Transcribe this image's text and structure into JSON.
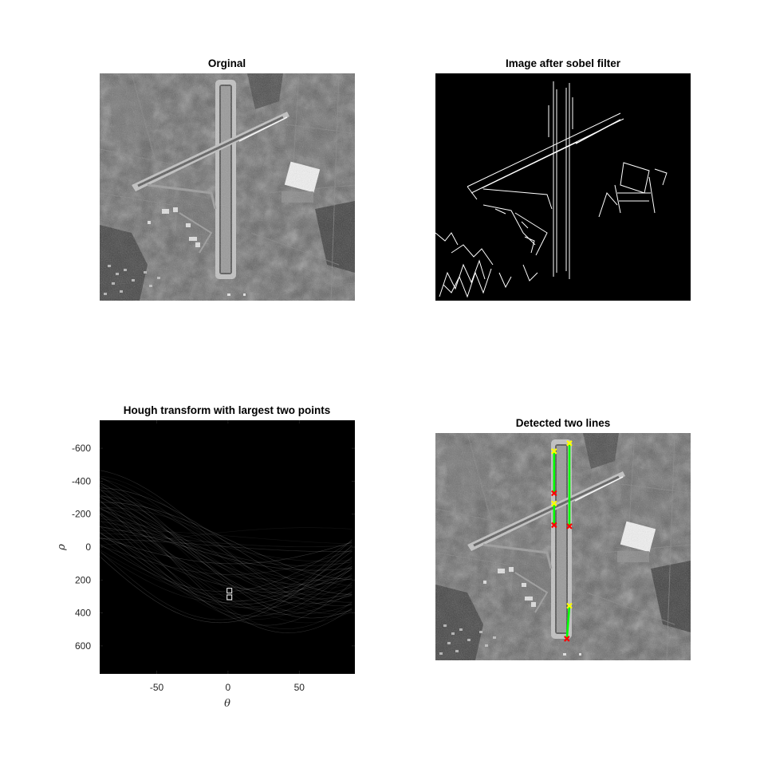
{
  "colors": {
    "aerial_ground": "#5f5f5f",
    "runway": "#c2c2c2",
    "hough_background": "#000000",
    "edge_lines": "#ffffff",
    "line_segment": "#00ff00",
    "segment_start": "#ffff00",
    "segment_end": "#ff0000"
  },
  "chart_data": [
    {
      "type": "image",
      "title": "Orginal",
      "content": "grayscale aerial airport image"
    },
    {
      "type": "image",
      "title": "Image after sobel filter",
      "content": "binary edge image"
    },
    {
      "type": "heatmap",
      "title": "Hough transform with largest two points",
      "xlabel": "θ",
      "ylabel": "ρ",
      "xlim": [
        -90,
        89
      ],
      "ylim": [
        -770,
        770
      ],
      "y_reversed": true,
      "xticks": [
        -50,
        0,
        50
      ],
      "yticks": [
        -600,
        -400,
        -200,
        0,
        200,
        400,
        600
      ],
      "peaks": [
        {
          "theta": 1,
          "rho": 265
        },
        {
          "theta": 1,
          "rho": 305
        }
      ]
    },
    {
      "type": "image",
      "title": "Detected two lines",
      "content": "original image with detected line segments overlaid",
      "segments": [
        {
          "start": [
            0.465,
            0.08
          ],
          "end": [
            0.465,
            0.265
          ]
        },
        {
          "start": [
            0.465,
            0.31
          ],
          "end": [
            0.465,
            0.405
          ]
        },
        {
          "start": [
            0.525,
            0.045
          ],
          "end": [
            0.525,
            0.41
          ]
        },
        {
          "start": [
            0.525,
            0.76
          ],
          "end": [
            0.515,
            0.905
          ]
        }
      ]
    }
  ]
}
